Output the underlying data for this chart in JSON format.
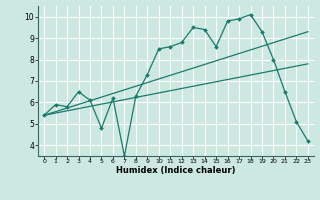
{
  "xlabel": "Humidex (Indice chaleur)",
  "ylabel": "",
  "bg_color": "#cce8e0",
  "grid_color": "#ffffff",
  "line_color": "#1a7a6e",
  "xlim": [
    -0.5,
    23.5
  ],
  "ylim": [
    3.5,
    10.5
  ],
  "xticks": [
    0,
    1,
    2,
    3,
    4,
    5,
    6,
    7,
    8,
    9,
    10,
    11,
    12,
    13,
    14,
    15,
    16,
    17,
    18,
    19,
    20,
    21,
    22,
    23
  ],
  "yticks": [
    4,
    5,
    6,
    7,
    8,
    9,
    10
  ],
  "line1_x": [
    0,
    1,
    2,
    3,
    4,
    5,
    6,
    7,
    8,
    9,
    10,
    11,
    12,
    13,
    14,
    15,
    16,
    17,
    18,
    19,
    20,
    21,
    22,
    23
  ],
  "line1_y": [
    5.4,
    5.9,
    5.8,
    6.5,
    6.1,
    4.8,
    6.2,
    3.5,
    6.3,
    7.3,
    8.5,
    8.6,
    8.8,
    9.5,
    9.4,
    8.6,
    9.8,
    9.9,
    10.1,
    9.3,
    8.0,
    6.5,
    5.1,
    4.2
  ],
  "line2_x": [
    0,
    23
  ],
  "line2_y": [
    5.4,
    9.3
  ],
  "line3_x": [
    0,
    23
  ],
  "line3_y": [
    5.4,
    7.8
  ]
}
